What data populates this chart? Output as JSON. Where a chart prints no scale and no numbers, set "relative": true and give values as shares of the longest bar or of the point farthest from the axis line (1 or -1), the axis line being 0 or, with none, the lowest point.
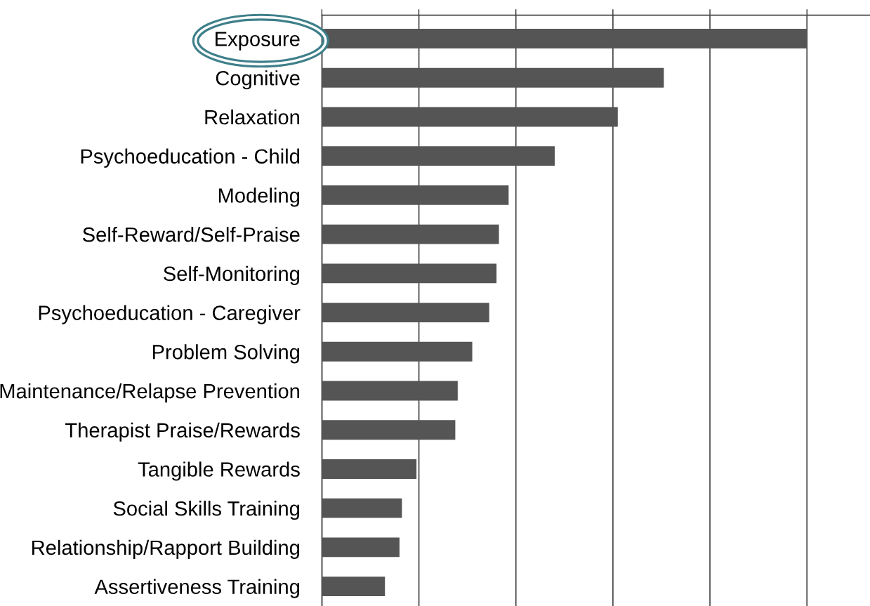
{
  "chart_data": {
    "type": "bar",
    "orientation": "horizontal",
    "relative": true,
    "grid": "x",
    "color": "#555555",
    "categories": [
      "Exposure",
      "Cognitive",
      "Relaxation",
      "Psychoeducation - Child",
      "Modeling",
      "Self-Reward/Self-Praise",
      "Self-Monitoring",
      "Psychoeducation - Caregiver",
      "Problem Solving",
      "Maintenance/Relapse Prevention",
      "Therapist Praise/Rewards",
      "Tangible Rewards",
      "Social Skills Training",
      "Relationship/Rapport Building",
      "Assertiveness Training"
    ],
    "values": [
      1,
      0.705,
      0.61,
      0.48,
      0.385,
      0.365,
      0.36,
      0.345,
      0.31,
      0.28,
      0.275,
      0.195,
      0.165,
      0.16,
      0.13
    ]
  }
}
